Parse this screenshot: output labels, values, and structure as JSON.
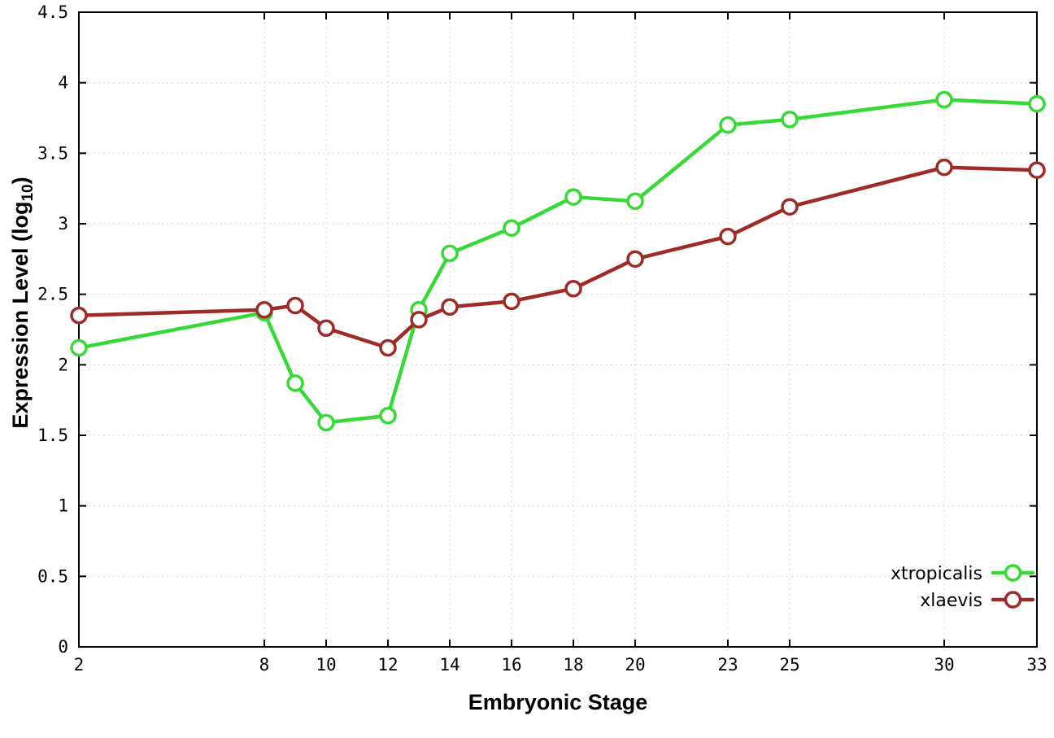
{
  "chart_data": {
    "type": "line",
    "title": "",
    "xlabel": "Embryonic Stage",
    "ylabel_prefix": "Expression Level (log",
    "ylabel_sub": "10",
    "ylabel_suffix": ")",
    "xlim": [
      2,
      33
    ],
    "ylim": [
      0,
      4.5
    ],
    "grid": true,
    "legend_position": "bottom-right",
    "x": [
      2,
      8,
      9,
      10,
      12,
      13,
      14,
      16,
      18,
      20,
      23,
      25,
      30,
      33
    ],
    "xticks": [
      2,
      8,
      10,
      12,
      14,
      16,
      18,
      20,
      23,
      25,
      30,
      33
    ],
    "xtick_labels": [
      "2",
      "8",
      "10",
      "12",
      "14",
      "16",
      "18",
      "20",
      "23",
      "25",
      "30",
      "33"
    ],
    "yticks": [
      0,
      0.5,
      1,
      1.5,
      2,
      2.5,
      3,
      3.5,
      4,
      4.5
    ],
    "ytick_labels": [
      "0",
      "0.5",
      "1",
      "1.5",
      "2",
      "2.5",
      "3",
      "3.5",
      "4",
      "4.5"
    ],
    "series": [
      {
        "name": "xtropicalis",
        "color": "#36d936",
        "values": [
          2.12,
          2.37,
          1.87,
          1.59,
          1.64,
          2.39,
          2.79,
          2.97,
          3.19,
          3.16,
          3.7,
          3.74,
          3.88,
          3.85
        ]
      },
      {
        "name": "xlaevis",
        "color": "#9e2b25",
        "values": [
          2.35,
          2.39,
          2.42,
          2.26,
          2.12,
          2.32,
          2.41,
          2.45,
          2.54,
          2.75,
          2.91,
          3.12,
          3.4,
          3.38
        ]
      }
    ],
    "background_color": "#ffffff",
    "axis_color": "#000000",
    "grid_color": "#d8d8d8"
  }
}
